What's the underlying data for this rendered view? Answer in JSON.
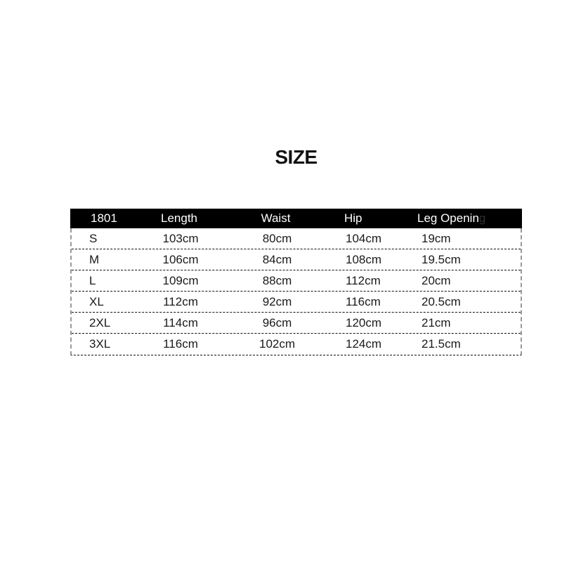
{
  "title": "SIZE",
  "chart_data": {
    "type": "table",
    "title": "SIZE",
    "columns": [
      "1801",
      "Length",
      "Waist",
      "Hip",
      "Leg Openin"
    ],
    "header_faint_suffix": "g",
    "rows": [
      [
        "S",
        "103cm",
        "80cm",
        "104cm",
        "19cm"
      ],
      [
        "M",
        "106cm",
        "84cm",
        "108cm",
        "19.5cm"
      ],
      [
        "L",
        "109cm",
        "88cm",
        "112cm",
        "20cm"
      ],
      [
        "XL",
        "112cm",
        "92cm",
        "116cm",
        "20.5cm"
      ],
      [
        "2XL",
        "114cm",
        "96cm",
        "120cm",
        "21cm"
      ],
      [
        "3XL",
        "116cm",
        "102cm",
        "124cm",
        "21.5cm"
      ]
    ]
  },
  "colors": {
    "background": "#ffffff",
    "header_background": "#000000",
    "header_text": "#ffffff",
    "body_text": "#1a1a1a",
    "row_divider": "#111111",
    "side_border": "#999999",
    "faint_header_suffix": "#303030"
  }
}
